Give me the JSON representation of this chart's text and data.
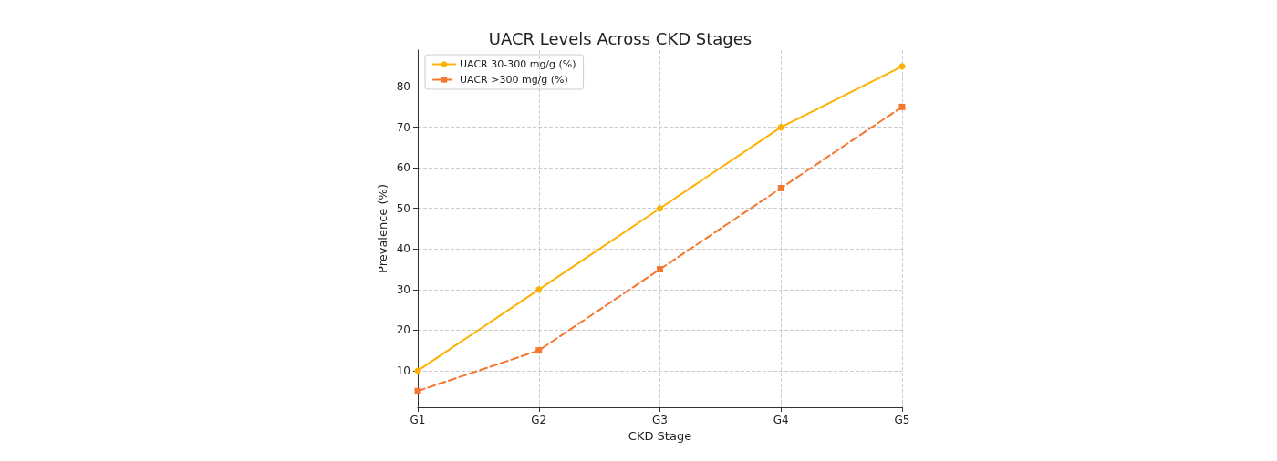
{
  "chart_data": {
    "type": "line",
    "title": "UACR Levels Across CKD Stages",
    "xlabel": "CKD Stage",
    "ylabel": "Prevalence (%)",
    "categories": [
      "G1",
      "G2",
      "G3",
      "G4",
      "G5"
    ],
    "series": [
      {
        "name": "UACR 30-300 mg/g (%)",
        "color": "#ffb000",
        "values": [
          10,
          30,
          50,
          70,
          85
        ],
        "marker": "circle",
        "line_style": "solid"
      },
      {
        "name": "UACR >300 mg/g (%)",
        "color": "#f4772f",
        "values": [
          5,
          15,
          35,
          55,
          75
        ],
        "marker": "square",
        "line_style": "dashed"
      }
    ],
    "ylim": [
      1,
      89
    ],
    "yticks": [
      10,
      20,
      30,
      40,
      50,
      60,
      70,
      80
    ],
    "grid": true,
    "legend": "top left"
  }
}
